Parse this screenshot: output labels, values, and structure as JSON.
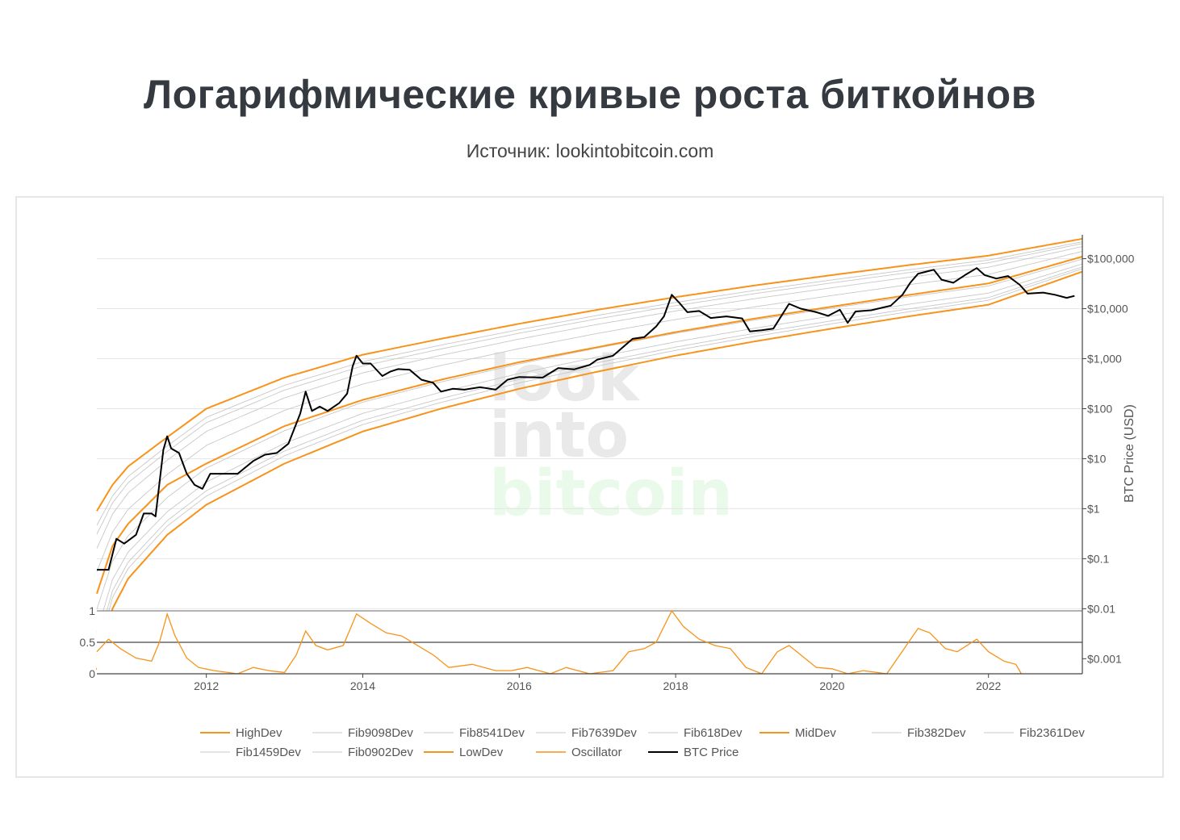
{
  "header": {
    "title": "Логарифмические кривые роста биткойнов",
    "subtitle": "Источник: lookintobitcoin.com"
  },
  "watermark": {
    "line1": "look",
    "line2": "into",
    "line3": "bitcoin"
  },
  "colors": {
    "orange": "#f7931a",
    "fib": "#c8c8c8",
    "price": "#000000",
    "grid": "#e6e6e6",
    "axis": "#444444",
    "watermark_gray": "#e9e9e9",
    "watermark_green": "#e9f9ea"
  },
  "chart_data": {
    "type": "line",
    "title": "",
    "xlabel": "",
    "ylabel": "BTC Price (USD)",
    "y_scale": "log",
    "xlim": [
      2010.6,
      2023.2
    ],
    "ylim": [
      0.0005,
      300000
    ],
    "x_ticks": [
      2012,
      2014,
      2016,
      2018,
      2020,
      2022
    ],
    "y_ticks": [
      {
        "value": 100000,
        "label": "$100,000"
      },
      {
        "value": 10000,
        "label": "$10,000"
      },
      {
        "value": 1000,
        "label": "$1,000"
      },
      {
        "value": 100,
        "label": "$100"
      },
      {
        "value": 10,
        "label": "$10"
      },
      {
        "value": 1,
        "label": "$1"
      },
      {
        "value": 0.1,
        "label": "$0.1"
      },
      {
        "value": 0.01,
        "label": "$0.01"
      },
      {
        "value": 0.001,
        "label": "$0.001"
      }
    ],
    "curves": [
      {
        "name": "HighDev",
        "style": "orange",
        "points": [
          [
            2010.6,
            0.9
          ],
          [
            2010.8,
            3
          ],
          [
            2011.0,
            7
          ],
          [
            2011.5,
            27
          ],
          [
            2012.0,
            100
          ],
          [
            2013.0,
            420
          ],
          [
            2014.0,
            1200
          ],
          [
            2015.0,
            2500
          ],
          [
            2016.0,
            5000
          ],
          [
            2017.0,
            9500
          ],
          [
            2018.0,
            17000
          ],
          [
            2019.0,
            29000
          ],
          [
            2020.0,
            47000
          ],
          [
            2021.0,
            75000
          ],
          [
            2022.0,
            115000
          ],
          [
            2023.2,
            250000
          ]
        ]
      },
      {
        "name": "MidDev",
        "style": "orange",
        "points": [
          [
            2010.6,
            0.02
          ],
          [
            2010.8,
            0.18
          ],
          [
            2011.0,
            0.5
          ],
          [
            2011.5,
            3
          ],
          [
            2012.0,
            8
          ],
          [
            2013.0,
            45
          ],
          [
            2014.0,
            150
          ],
          [
            2015.0,
            380
          ],
          [
            2016.0,
            850
          ],
          [
            2017.0,
            1700
          ],
          [
            2018.0,
            3400
          ],
          [
            2019.0,
            6300
          ],
          [
            2020.0,
            11000
          ],
          [
            2021.0,
            19000
          ],
          [
            2022.0,
            32000
          ],
          [
            2023.2,
            110000
          ]
        ]
      },
      {
        "name": "LowDev",
        "style": "orange",
        "points": [
          [
            2010.6,
            0.0006
          ],
          [
            2010.8,
            0.01
          ],
          [
            2011.0,
            0.04
          ],
          [
            2011.5,
            0.3
          ],
          [
            2012.0,
            1.2
          ],
          [
            2013.0,
            8
          ],
          [
            2014.0,
            35
          ],
          [
            2015.0,
            100
          ],
          [
            2016.0,
            250
          ],
          [
            2017.0,
            550
          ],
          [
            2018.0,
            1150
          ],
          [
            2019.0,
            2200
          ],
          [
            2020.0,
            4000
          ],
          [
            2021.0,
            7100
          ],
          [
            2022.0,
            12000
          ],
          [
            2023.2,
            55000
          ]
        ]
      }
    ],
    "fib_levels": [
      {
        "name": "Fib9098Dev",
        "t": 0.9098
      },
      {
        "name": "Fib8541Dev",
        "t": 0.8541
      },
      {
        "name": "Fib7639Dev",
        "t": 0.7639
      },
      {
        "name": "Fib618Dev",
        "t": 0.618
      },
      {
        "name": "Fib382Dev",
        "t": 0.382
      },
      {
        "name": "Fib2361Dev",
        "t": 0.2361
      },
      {
        "name": "Fib1459Dev",
        "t": 0.1459
      },
      {
        "name": "Fib0902Dev",
        "t": 0.0902
      }
    ],
    "btc_price": [
      [
        2010.6,
        0.06
      ],
      [
        2010.75,
        0.06
      ],
      [
        2010.85,
        0.25
      ],
      [
        2010.95,
        0.2
      ],
      [
        2011.1,
        0.3
      ],
      [
        2011.2,
        0.8
      ],
      [
        2011.3,
        0.8
      ],
      [
        2011.35,
        0.7
      ],
      [
        2011.45,
        15
      ],
      [
        2011.5,
        28
      ],
      [
        2011.55,
        16
      ],
      [
        2011.65,
        13
      ],
      [
        2011.75,
        5
      ],
      [
        2011.85,
        3
      ],
      [
        2011.95,
        2.5
      ],
      [
        2012.05,
        5
      ],
      [
        2012.2,
        5
      ],
      [
        2012.4,
        5
      ],
      [
        2012.6,
        9
      ],
      [
        2012.75,
        12
      ],
      [
        2012.9,
        13
      ],
      [
        2013.05,
        20
      ],
      [
        2013.2,
        80
      ],
      [
        2013.27,
        220
      ],
      [
        2013.35,
        90
      ],
      [
        2013.45,
        110
      ],
      [
        2013.55,
        90
      ],
      [
        2013.7,
        130
      ],
      [
        2013.8,
        200
      ],
      [
        2013.87,
        700
      ],
      [
        2013.92,
        1150
      ],
      [
        2014.0,
        800
      ],
      [
        2014.1,
        800
      ],
      [
        2014.25,
        450
      ],
      [
        2014.35,
        550
      ],
      [
        2014.45,
        620
      ],
      [
        2014.6,
        600
      ],
      [
        2014.75,
        380
      ],
      [
        2014.9,
        330
      ],
      [
        2015.0,
        220
      ],
      [
        2015.15,
        250
      ],
      [
        2015.3,
        240
      ],
      [
        2015.5,
        270
      ],
      [
        2015.7,
        240
      ],
      [
        2015.85,
        380
      ],
      [
        2016.0,
        430
      ],
      [
        2016.3,
        420
      ],
      [
        2016.5,
        650
      ],
      [
        2016.7,
        610
      ],
      [
        2016.9,
        750
      ],
      [
        2017.0,
        960
      ],
      [
        2017.2,
        1150
      ],
      [
        2017.45,
        2500
      ],
      [
        2017.6,
        2700
      ],
      [
        2017.75,
        4400
      ],
      [
        2017.85,
        7000
      ],
      [
        2017.95,
        19000
      ],
      [
        2018.05,
        13000
      ],
      [
        2018.15,
        8500
      ],
      [
        2018.3,
        9000
      ],
      [
        2018.45,
        6500
      ],
      [
        2018.65,
        7000
      ],
      [
        2018.85,
        6400
      ],
      [
        2018.95,
        3500
      ],
      [
        2019.1,
        3700
      ],
      [
        2019.25,
        4000
      ],
      [
        2019.45,
        12500
      ],
      [
        2019.6,
        10000
      ],
      [
        2019.8,
        8500
      ],
      [
        2019.95,
        7200
      ],
      [
        2020.1,
        9500
      ],
      [
        2020.2,
        5200
      ],
      [
        2020.3,
        8800
      ],
      [
        2020.5,
        9300
      ],
      [
        2020.75,
        11500
      ],
      [
        2020.9,
        19000
      ],
      [
        2021.0,
        33000
      ],
      [
        2021.1,
        50000
      ],
      [
        2021.3,
        60000
      ],
      [
        2021.4,
        38000
      ],
      [
        2021.55,
        33000
      ],
      [
        2021.7,
        47000
      ],
      [
        2021.85,
        65000
      ],
      [
        2021.95,
        47000
      ],
      [
        2022.1,
        40000
      ],
      [
        2022.25,
        45000
      ],
      [
        2022.4,
        30000
      ],
      [
        2022.5,
        20000
      ],
      [
        2022.7,
        21000
      ],
      [
        2022.85,
        19000
      ],
      [
        2023.0,
        16500
      ],
      [
        2023.1,
        18000
      ]
    ],
    "oscillator": {
      "name": "Oscillator",
      "y_ticks": [
        {
          "value": 1,
          "label": "1"
        },
        {
          "value": 0.5,
          "label": "0.5"
        },
        {
          "value": 0,
          "label": "0"
        }
      ],
      "points": [
        [
          2010.6,
          0.35
        ],
        [
          2010.75,
          0.55
        ],
        [
          2010.9,
          0.4
        ],
        [
          2011.1,
          0.25
        ],
        [
          2011.3,
          0.2
        ],
        [
          2011.4,
          0.5
        ],
        [
          2011.5,
          0.95
        ],
        [
          2011.6,
          0.6
        ],
        [
          2011.75,
          0.25
        ],
        [
          2011.9,
          0.1
        ],
        [
          2012.1,
          0.05
        ],
        [
          2012.4,
          0.0
        ],
        [
          2012.6,
          0.1
        ],
        [
          2012.8,
          0.05
        ],
        [
          2013.0,
          0.02
        ],
        [
          2013.15,
          0.3
        ],
        [
          2013.27,
          0.68
        ],
        [
          2013.4,
          0.45
        ],
        [
          2013.55,
          0.38
        ],
        [
          2013.75,
          0.45
        ],
        [
          2013.92,
          0.95
        ],
        [
          2014.1,
          0.8
        ],
        [
          2014.3,
          0.65
        ],
        [
          2014.5,
          0.6
        ],
        [
          2014.7,
          0.45
        ],
        [
          2014.9,
          0.3
        ],
        [
          2015.1,
          0.1
        ],
        [
          2015.4,
          0.15
        ],
        [
          2015.7,
          0.05
        ],
        [
          2015.9,
          0.05
        ],
        [
          2016.1,
          0.1
        ],
        [
          2016.4,
          0.0
        ],
        [
          2016.6,
          0.1
        ],
        [
          2016.9,
          0.0
        ],
        [
          2017.2,
          0.05
        ],
        [
          2017.4,
          0.35
        ],
        [
          2017.6,
          0.4
        ],
        [
          2017.75,
          0.5
        ],
        [
          2017.95,
          1.0
        ],
        [
          2018.1,
          0.75
        ],
        [
          2018.3,
          0.55
        ],
        [
          2018.5,
          0.45
        ],
        [
          2018.7,
          0.4
        ],
        [
          2018.9,
          0.1
        ],
        [
          2019.1,
          0.0
        ],
        [
          2019.3,
          0.35
        ],
        [
          2019.45,
          0.45
        ],
        [
          2019.6,
          0.3
        ],
        [
          2019.8,
          0.1
        ],
        [
          2020.0,
          0.08
        ],
        [
          2020.2,
          0.0
        ],
        [
          2020.4,
          0.05
        ],
        [
          2020.7,
          0.0
        ],
        [
          2020.95,
          0.45
        ],
        [
          2021.1,
          0.72
        ],
        [
          2021.25,
          0.65
        ],
        [
          2021.45,
          0.4
        ],
        [
          2021.6,
          0.35
        ],
        [
          2021.85,
          0.55
        ],
        [
          2022.0,
          0.35
        ],
        [
          2022.2,
          0.2
        ],
        [
          2022.35,
          0.15
        ],
        [
          2022.42,
          0.0
        ]
      ]
    },
    "legend": {
      "placement": "bottom",
      "items": [
        {
          "name": "HighDev",
          "style": "orange"
        },
        {
          "name": "Fib9098Dev",
          "style": "fib"
        },
        {
          "name": "Fib8541Dev",
          "style": "fib"
        },
        {
          "name": "Fib7639Dev",
          "style": "fib"
        },
        {
          "name": "Fib618Dev",
          "style": "fib"
        },
        {
          "name": "MidDev",
          "style": "orange"
        },
        {
          "name": "Fib382Dev",
          "style": "fib"
        },
        {
          "name": "Fib2361Dev",
          "style": "fib"
        },
        {
          "name": "Fib1459Dev",
          "style": "fib"
        },
        {
          "name": "Fib0902Dev",
          "style": "fib"
        },
        {
          "name": "LowDev",
          "style": "orange"
        },
        {
          "name": "Oscillator",
          "style": "orange-thin"
        },
        {
          "name": "BTC Price",
          "style": "price"
        }
      ]
    }
  }
}
